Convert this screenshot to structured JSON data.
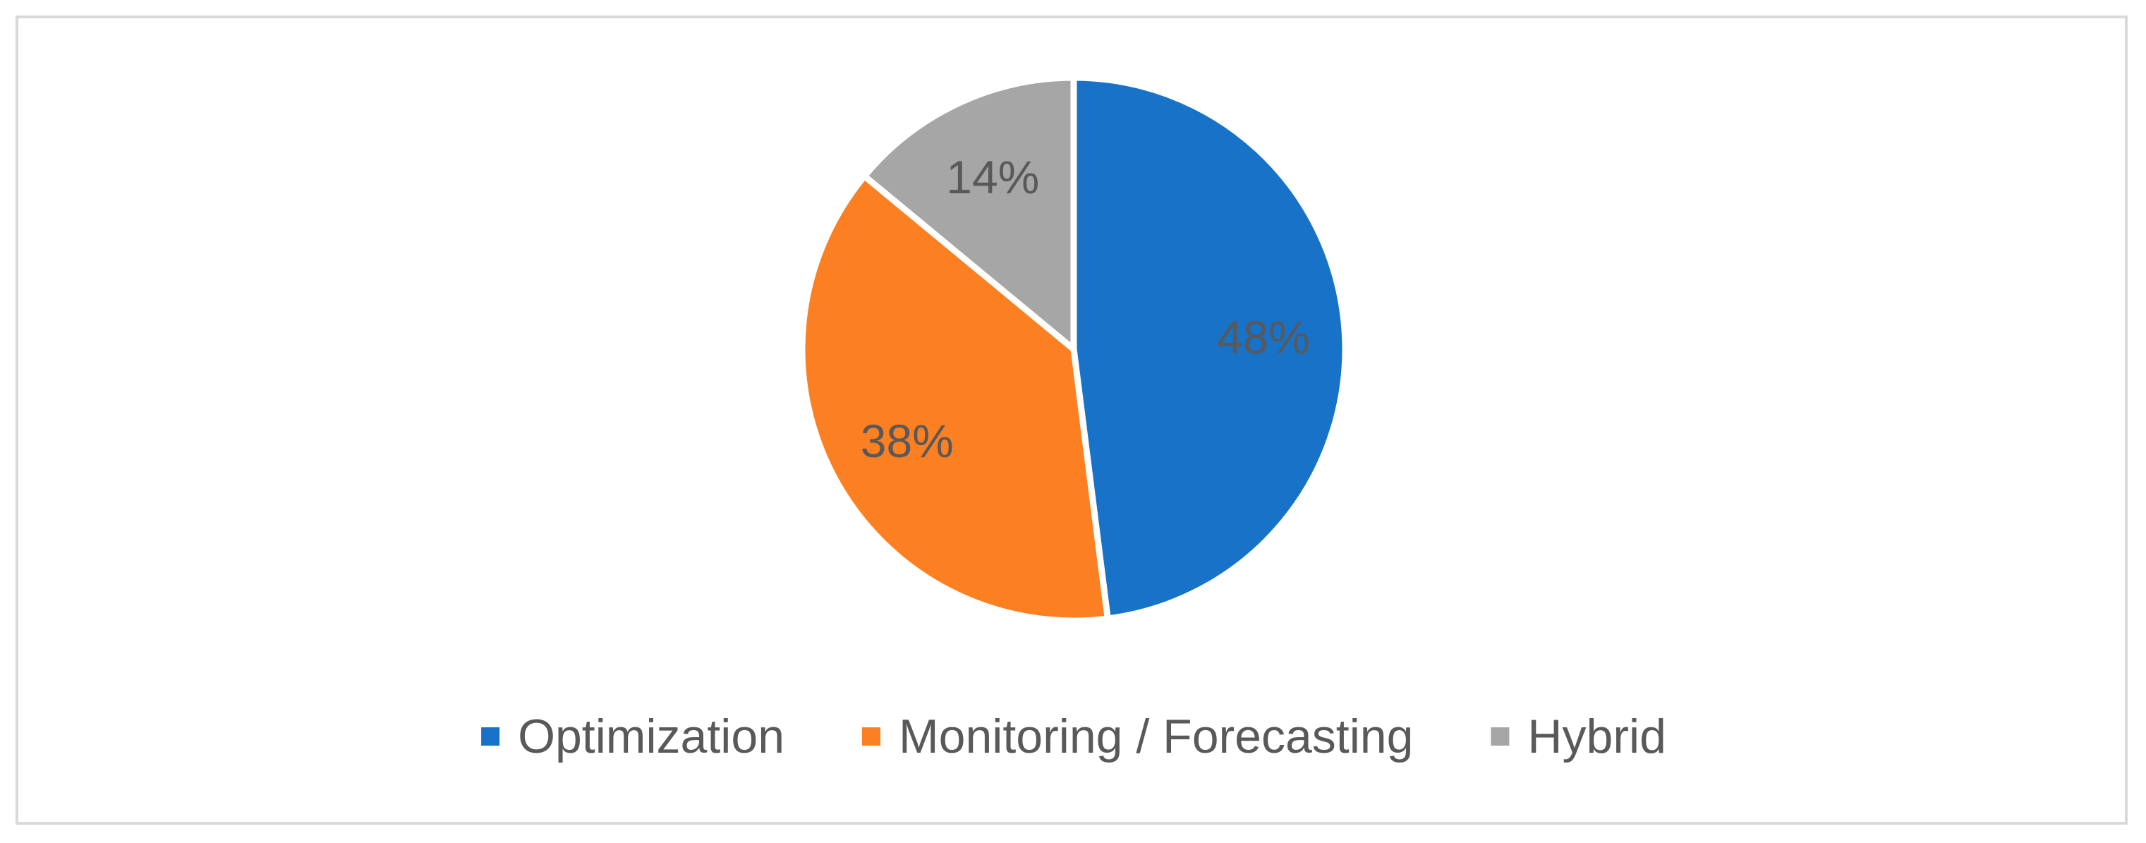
{
  "chart_data": {
    "type": "pie",
    "title": "",
    "slices": [
      {
        "name": "Optimization",
        "value": 48,
        "label": "48%",
        "color": "#1872c8"
      },
      {
        "name": "Monitoring / Forecasting",
        "value": 38,
        "label": "38%",
        "color": "#fc7f22"
      },
      {
        "name": "Hybrid",
        "value": 14,
        "label": "14%",
        "color": "#a6a6a6"
      }
    ],
    "legend": {
      "position": "bottom",
      "entries": [
        "Optimization",
        "Monitoring / Forecasting",
        "Hybrid"
      ]
    }
  }
}
